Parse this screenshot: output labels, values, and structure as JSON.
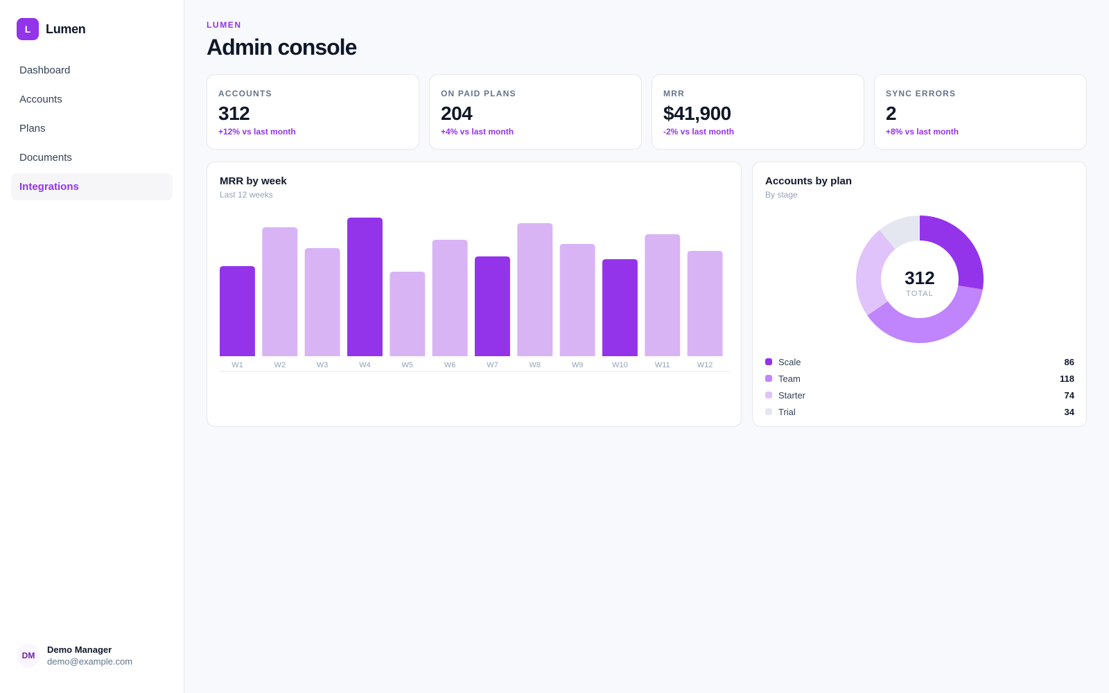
{
  "brand": {
    "logo_letter": "L",
    "name": "Lumen"
  },
  "nav": [
    {
      "label": "Dashboard",
      "active": false
    },
    {
      "label": "Accounts",
      "active": false
    },
    {
      "label": "Plans",
      "active": false
    },
    {
      "label": "Documents",
      "active": false
    },
    {
      "label": "Integrations",
      "active": true
    }
  ],
  "user": {
    "initials": "DM",
    "name": "Demo Manager",
    "email": "demo@example.com"
  },
  "header": {
    "eyebrow": "LUMEN",
    "title": "Admin console"
  },
  "stats": [
    {
      "label": "ACCOUNTS",
      "value": "312",
      "delta": "+12% vs last month"
    },
    {
      "label": "ON PAID PLANS",
      "value": "204",
      "delta": "+4% vs last month"
    },
    {
      "label": "MRR",
      "value": "$41,900",
      "delta": "-2% vs last month"
    },
    {
      "label": "SYNC ERRORS",
      "value": "2",
      "delta": "+8% vs last month"
    }
  ],
  "bar_card": {
    "title": "MRR by week",
    "subtitle": "Last 12 weeks"
  },
  "donut_card": {
    "title": "Accounts by plan",
    "subtitle": "By stage",
    "total": "312",
    "total_label": "TOTAL"
  },
  "colors": {
    "accent": "#9333ea",
    "accent_light": "#d8b4f5",
    "team": "#c084fc",
    "starter": "#e0c3fa",
    "trial": "#e5e7f0"
  },
  "chart_data": [
    {
      "type": "bar",
      "title": "MRR by week",
      "subtitle": "Last 12 weeks",
      "categories": [
        "W1",
        "W2",
        "W3",
        "W4",
        "W5",
        "W6",
        "W7",
        "W8",
        "W9",
        "W10",
        "W11",
        "W12"
      ],
      "values": [
        65,
        93,
        78,
        100,
        61,
        84,
        72,
        96,
        81,
        70,
        88,
        76
      ],
      "highlighted": [
        true,
        false,
        false,
        true,
        false,
        false,
        true,
        false,
        false,
        true,
        false,
        false
      ],
      "ylim": [
        0,
        100
      ]
    },
    {
      "type": "pie",
      "title": "Accounts by plan",
      "subtitle": "By stage",
      "labels": [
        "Scale",
        "Team",
        "Starter",
        "Trial"
      ],
      "values": [
        86,
        118,
        74,
        34
      ],
      "colors": [
        "#9333ea",
        "#c084fc",
        "#e0c3fa",
        "#e5e7f0"
      ]
    }
  ]
}
